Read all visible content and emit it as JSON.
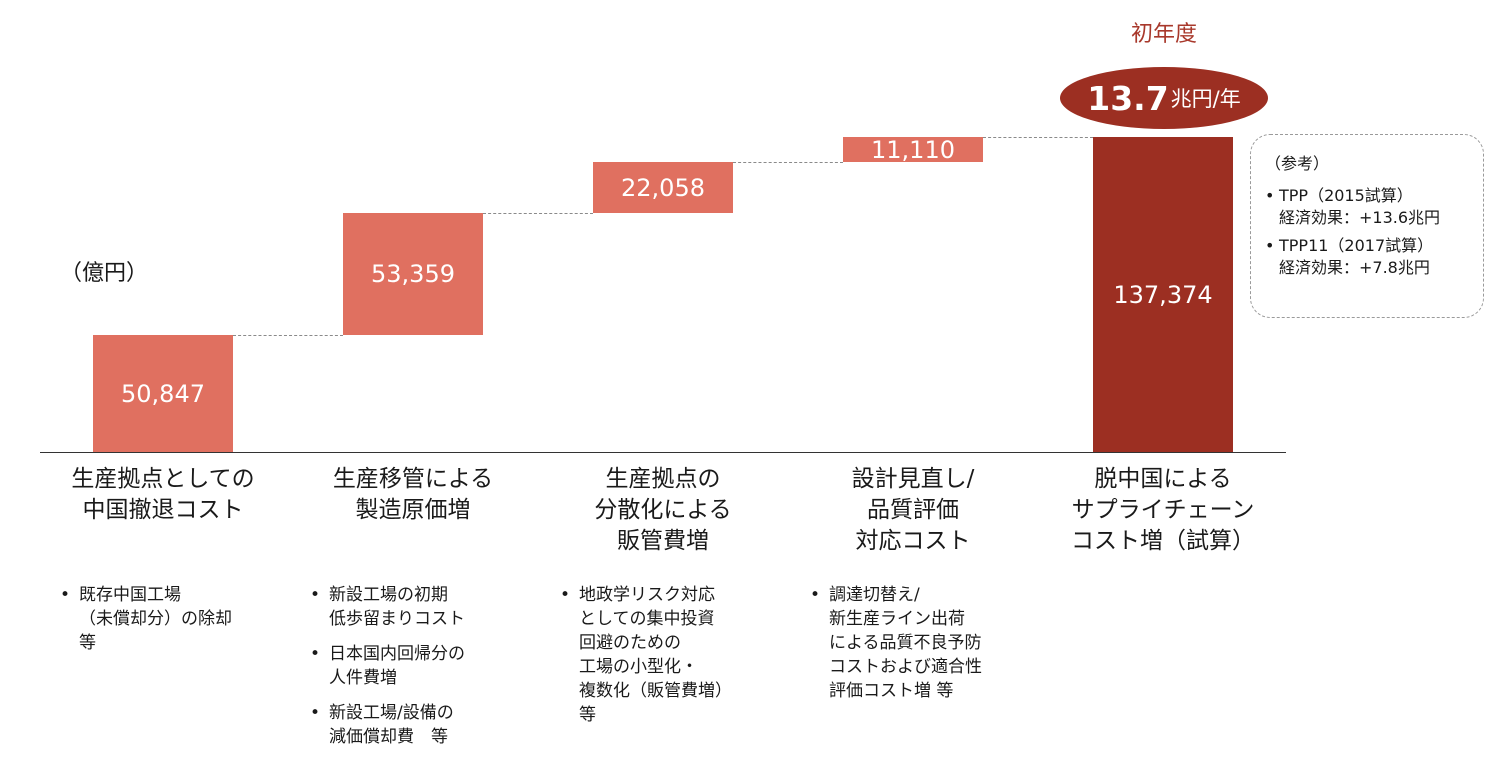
{
  "chart_data": {
    "type": "bar",
    "subtype": "waterfall",
    "unit_label": "（億円）",
    "categories": [
      "生産拠点としての\n中国撤退コスト",
      "生産移管による\n製造原価増",
      "生産拠点の\n分散化による\n販管費増",
      "設計見直し/\n品質評価\n対応コスト",
      "脱中国による\nサプライチェーン\nコスト増（試算）"
    ],
    "values": [
      50847,
      53359,
      22058,
      11110,
      137374
    ],
    "value_labels": [
      "50,847",
      "53,359",
      "22,058",
      "11,110",
      "137,374"
    ],
    "is_total": [
      false,
      false,
      false,
      false,
      true
    ],
    "ylim": [
      0,
      150000
    ],
    "colors": {
      "increment": "#e07060",
      "total": "#9c2f22",
      "accent_text": "#a8382b"
    },
    "total_title": "初年度",
    "total_value": "13.7",
    "total_unit": "兆円/年",
    "notes": [
      [
        "既存中国工場\n（未償却分）の除却\n等"
      ],
      [
        "新設工場の初期\n低歩留まりコスト",
        "日本国内回帰分の\n人件費増",
        "新設工場/設備の\n減価償却費　等"
      ],
      [
        "地政学リスク対応\nとしての集中投資\n回避のための\n工場の小型化・\n複数化（販管費増）\n等"
      ],
      [
        "調達切替え/\n新生産ライン出荷\nによる品質不良予防\nコストおよび適合性\n評価コスト増 等"
      ],
      []
    ],
    "reference": {
      "title": "（参考）",
      "items": [
        "TPP（2015試算）\n経済効果：+13.6兆円",
        "TPP11（2017試算）\n経済効果：+7.8兆円"
      ]
    }
  }
}
